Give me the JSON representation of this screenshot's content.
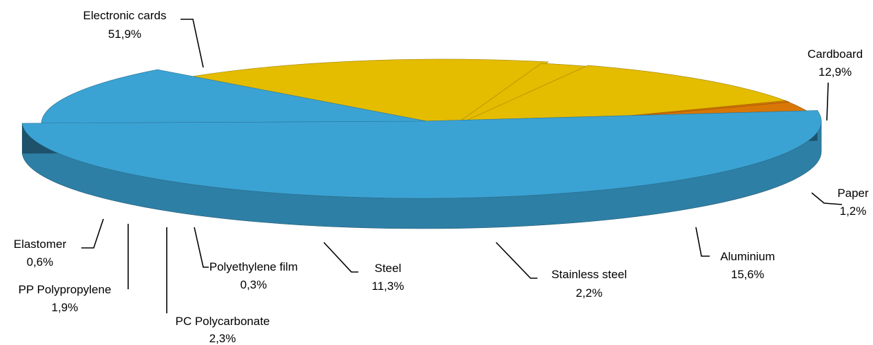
{
  "chart_data": {
    "type": "pie",
    "variant": "3d-exploded",
    "title": "",
    "slices": [
      {
        "name": "Electronic cards",
        "pct_label": "51,9%",
        "value": 51.9,
        "color": "#3BA3D3"
      },
      {
        "name": "Cardboard",
        "pct_label": "12,9%",
        "value": 12.9,
        "color": "#3BA3D3"
      },
      {
        "name": "Paper",
        "pct_label": "1,2%",
        "value": 1.2,
        "color": "#3BA3D3"
      },
      {
        "name": "Aluminium",
        "pct_label": "15,6%",
        "value": 15.6,
        "color": "#E4BC00"
      },
      {
        "name": "Stainless steel",
        "pct_label": "2,2%",
        "value": 2.2,
        "color": "#E4BC00"
      },
      {
        "name": "Steel",
        "pct_label": "11,3%",
        "value": 11.3,
        "color": "#E4BC00"
      },
      {
        "name": "Polyethylene film",
        "pct_label": "0,3%",
        "value": 0.3,
        "color": "#D97706"
      },
      {
        "name": "PC Polycarbonate",
        "pct_label": "2,3%",
        "value": 2.3,
        "color": "#D97706"
      },
      {
        "name": "PP Polypropylene",
        "pct_label": "1,9%",
        "value": 1.9,
        "color": "#D97706"
      },
      {
        "name": "Elastomer",
        "pct_label": "0,6%",
        "value": 0.6,
        "color": "#3BA3D3"
      }
    ]
  }
}
